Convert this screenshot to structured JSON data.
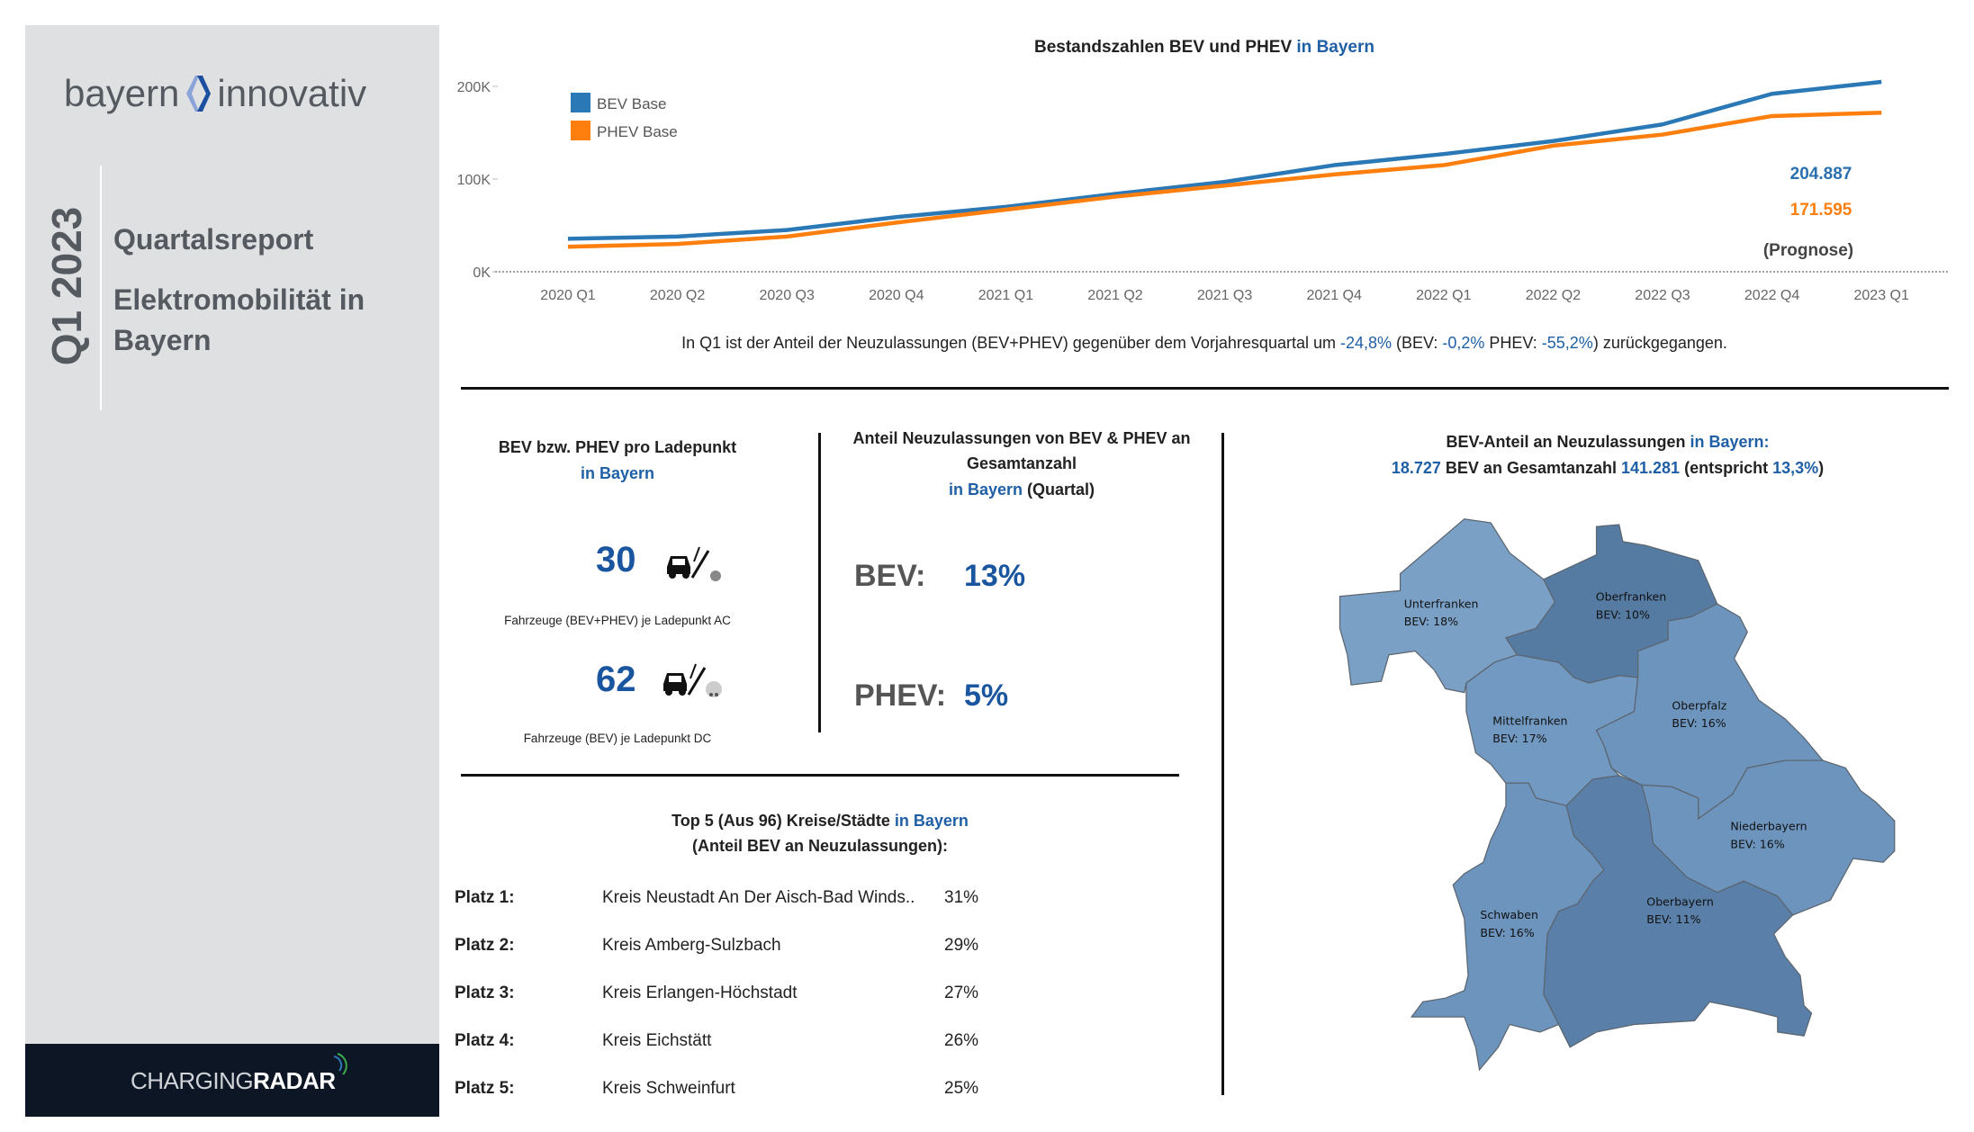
{
  "sidebar": {
    "logo_left": "bayern",
    "logo_right": "innovativ",
    "period": "Q1 2023",
    "title1": "Quartalsreport",
    "title2": "Elektromobilität in",
    "title3": "Bayern",
    "footer_logo_light": "CHARGING",
    "footer_logo_bold": "RADAR"
  },
  "chart_data": {
    "type": "line",
    "title": "Bestandszahlen BEV und PHEV",
    "title_highlight": "in Bayern",
    "x": [
      "2020 Q1",
      "2020 Q2",
      "2020 Q3",
      "2020 Q4",
      "2021 Q1",
      "2021 Q2",
      "2021 Q3",
      "2021 Q4",
      "2022 Q1",
      "2022 Q2",
      "2022 Q3",
      "2022 Q4",
      "2023 Q1"
    ],
    "yticks": [
      {
        "v": 0,
        "label": "0K"
      },
      {
        "v": 100000,
        "label": "100K"
      },
      {
        "v": 200000,
        "label": "200K"
      }
    ],
    "ylim": [
      0,
      210000
    ],
    "legend_position": "top-left",
    "series": [
      {
        "name": "BEV Base",
        "color": "#2a78b5",
        "values": [
          35600,
          38000,
          45000,
          59000,
          70000,
          84000,
          97000,
          115000,
          127000,
          141000,
          159000,
          192000,
          204887
        ]
      },
      {
        "name": "PHEV Base",
        "color": "#ff7f0e",
        "values": [
          27000,
          30000,
          38000,
          53000,
          67000,
          81000,
          93000,
          105000,
          115000,
          136000,
          148000,
          168000,
          171595
        ]
      }
    ],
    "annotations": {
      "bev_last": "204.887",
      "phev_last": "171.595",
      "note": "(Prognose)"
    }
  },
  "summary": {
    "pre": "In Q1 ist der Anteil der Neuzulassungen (BEV+PHEV) gegenüber dem Vorjahresquartal um ",
    "total": "-24,8%",
    "mid1": " (BEV: ",
    "bev": "-0,2%",
    "mid2": " PHEV: ",
    "phev": "-55,2%",
    "post": ") zurückgegangen."
  },
  "ladepunkt": {
    "title": "BEV bzw. PHEV pro Ladepunkt",
    "sub": "in Bayern",
    "ac_value": "30",
    "ac_caption": "Fahrzeuge (BEV+PHEV) je Ladepunkt AC",
    "dc_value": "62",
    "dc_caption": "Fahrzeuge (BEV) je Ladepunkt DC",
    "icon": "car-charging-icon"
  },
  "anteil": {
    "title1": "Anteil Neuzulassungen von BEV & PHEV an",
    "title2": "Gesamtanzahl",
    "sub_blue": "in Bayern",
    "sub_rest": " (Quartal)",
    "bev_label": "BEV:",
    "bev_value": "13%",
    "phev_label": "PHEV:",
    "phev_value": "5%"
  },
  "top5": {
    "title": "Top 5 (Aus 96) Kreise/Städte ",
    "title_blue": "in Bayern",
    "sub": "(Anteil BEV an Neuzulassungen):",
    "rows": [
      {
        "rank": "Platz 1:",
        "name": "Kreis Neustadt An Der Aisch-Bad Winds..",
        "pct": "31%"
      },
      {
        "rank": "Platz 2:",
        "name": "Kreis Amberg-Sulzbach",
        "pct": "29%"
      },
      {
        "rank": "Platz 3:",
        "name": "Kreis Erlangen-Höchstadt",
        "pct": "27%"
      },
      {
        "rank": "Platz 4:",
        "name": "Kreis Eichstätt",
        "pct": "26%"
      },
      {
        "rank": "Platz 5:",
        "name": "Kreis Schweinfurt",
        "pct": "25%"
      }
    ]
  },
  "map": {
    "title": "BEV-Anteil an Neuzulassungen ",
    "title_blue": "in Bayern:",
    "l2_v1": "18.727",
    "l2_t1": " BEV an Gesamtanzahl ",
    "l2_v2": "141.281",
    "l2_t2": " (entspricht ",
    "l2_v3": "13,3%",
    "l2_t3": ")",
    "regions": [
      {
        "name": "Unterfranken",
        "value": "BEV: 18%",
        "color": "#7aa0c6"
      },
      {
        "name": "Oberfranken",
        "value": "BEV: 10%",
        "color": "#557ba3"
      },
      {
        "name": "Mittelfranken",
        "value": "BEV: 17%",
        "color": "#7199c2"
      },
      {
        "name": "Oberpfalz",
        "value": "BEV: 16%",
        "color": "#6d94bd"
      },
      {
        "name": "Niederbayern",
        "value": "BEV: 16%",
        "color": "#6d94bd"
      },
      {
        "name": "Oberbayern",
        "value": "BEV: 11%",
        "color": "#5a7fa8"
      },
      {
        "name": "Schwaben",
        "value": "BEV: 16%",
        "color": "#6d94bd"
      }
    ]
  }
}
